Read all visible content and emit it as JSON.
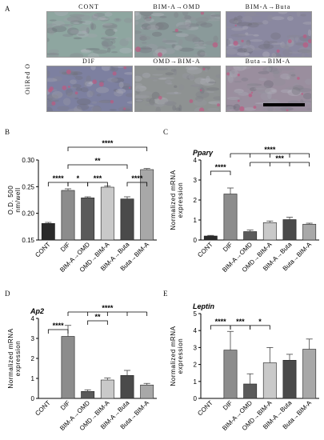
{
  "panels": {
    "a": "A",
    "b": "B",
    "c": "C",
    "d": "D",
    "e": "E"
  },
  "micrographs": {
    "stain": "OilRed O",
    "titles": [
      "CONT",
      "BIM-A→OMD",
      "BIM-A→Buta",
      "DIF",
      "OMD→BIM-A",
      "Buta→BIM-A"
    ]
  },
  "colors": {
    "cont": "#2b2b2b",
    "dif": "#8c8c8c",
    "bimomd": "#5a5a5a",
    "omdbim": "#c9c9c9",
    "bimbuta": "#4a4a4a",
    "butabim": "#a8a8a8"
  },
  "chart_data": [
    {
      "type": "bar",
      "panel": "B",
      "title": "",
      "ylabel": "O.D. 500 nm/well",
      "xlabel": "",
      "categories": [
        "CONT",
        "DIF",
        "BIM-A→OMD",
        "OMD→BIM-A",
        "BIM-A→Buta",
        "Buta→BIM-A"
      ],
      "values": [
        0.181,
        0.243,
        0.229,
        0.249,
        0.227,
        0.282
      ],
      "errors": [
        0.002,
        0.003,
        0.002,
        0.002,
        0.004,
        0.002
      ],
      "ylim": [
        0.15,
        0.3
      ],
      "yticks": [
        0.15,
        0.2,
        0.25,
        0.3
      ],
      "significance": [
        {
          "label": "****"
        },
        {
          "label": "*"
        },
        {
          "label": "***"
        },
        {
          "label": "****"
        },
        {
          "label": "**"
        },
        {
          "label": "****"
        }
      ]
    },
    {
      "type": "bar",
      "panel": "C",
      "title": "Pparγ",
      "ylabel": "Normalized mRNA expression",
      "xlabel": "",
      "categories": [
        "CONT",
        "DIF",
        "BIM-A→OMD",
        "OMD→BIM-A",
        "BIM-A→Buta",
        "Buta→BIM-A"
      ],
      "values": [
        0.2,
        2.3,
        0.42,
        0.87,
        1.02,
        0.79
      ],
      "errors": [
        0.03,
        0.3,
        0.08,
        0.08,
        0.12,
        0.05
      ],
      "ylim": [
        0,
        4
      ],
      "yticks": [
        0,
        1,
        2,
        3,
        4
      ],
      "significance": [
        {
          "label": "****"
        },
        {
          "label": "***"
        },
        {
          "label": "****"
        }
      ]
    },
    {
      "type": "bar",
      "panel": "D",
      "title": "Ap2",
      "ylabel": "Normalized mRNA expression",
      "xlabel": "",
      "categories": [
        "CONT",
        "DIF",
        "BIM-A→OMD",
        "OMD→BIM-A",
        "BIM-A→Buta",
        "Buta→BIM-A"
      ],
      "values": [
        0.0,
        3.1,
        0.35,
        0.92,
        1.15,
        0.67
      ],
      "errors": [
        0.0,
        0.55,
        0.08,
        0.1,
        0.25,
        0.08
      ],
      "ylim": [
        0,
        4
      ],
      "yticks": [
        0,
        1,
        2,
        3,
        4
      ],
      "significance": [
        {
          "label": "****"
        },
        {
          "label": "**"
        },
        {
          "label": "****"
        }
      ]
    },
    {
      "type": "bar",
      "panel": "E",
      "title": "Leptin",
      "ylabel": "Normalized mRNA expression",
      "xlabel": "",
      "categories": [
        "CONT",
        "DIF",
        "BIM-A→OMD",
        "OMD→BIM-A",
        "BIM-A→Buta",
        "Buta→BIM-A"
      ],
      "values": [
        0.0,
        2.85,
        0.85,
        2.1,
        2.25,
        2.9
      ],
      "errors": [
        0.0,
        1.1,
        0.6,
        0.9,
        0.35,
        0.6
      ],
      "ylim": [
        0,
        5
      ],
      "yticks": [
        0,
        1,
        2,
        3,
        4,
        5
      ],
      "significance": [
        {
          "label": "****"
        },
        {
          "label": "***"
        },
        {
          "label": "*"
        }
      ]
    }
  ]
}
